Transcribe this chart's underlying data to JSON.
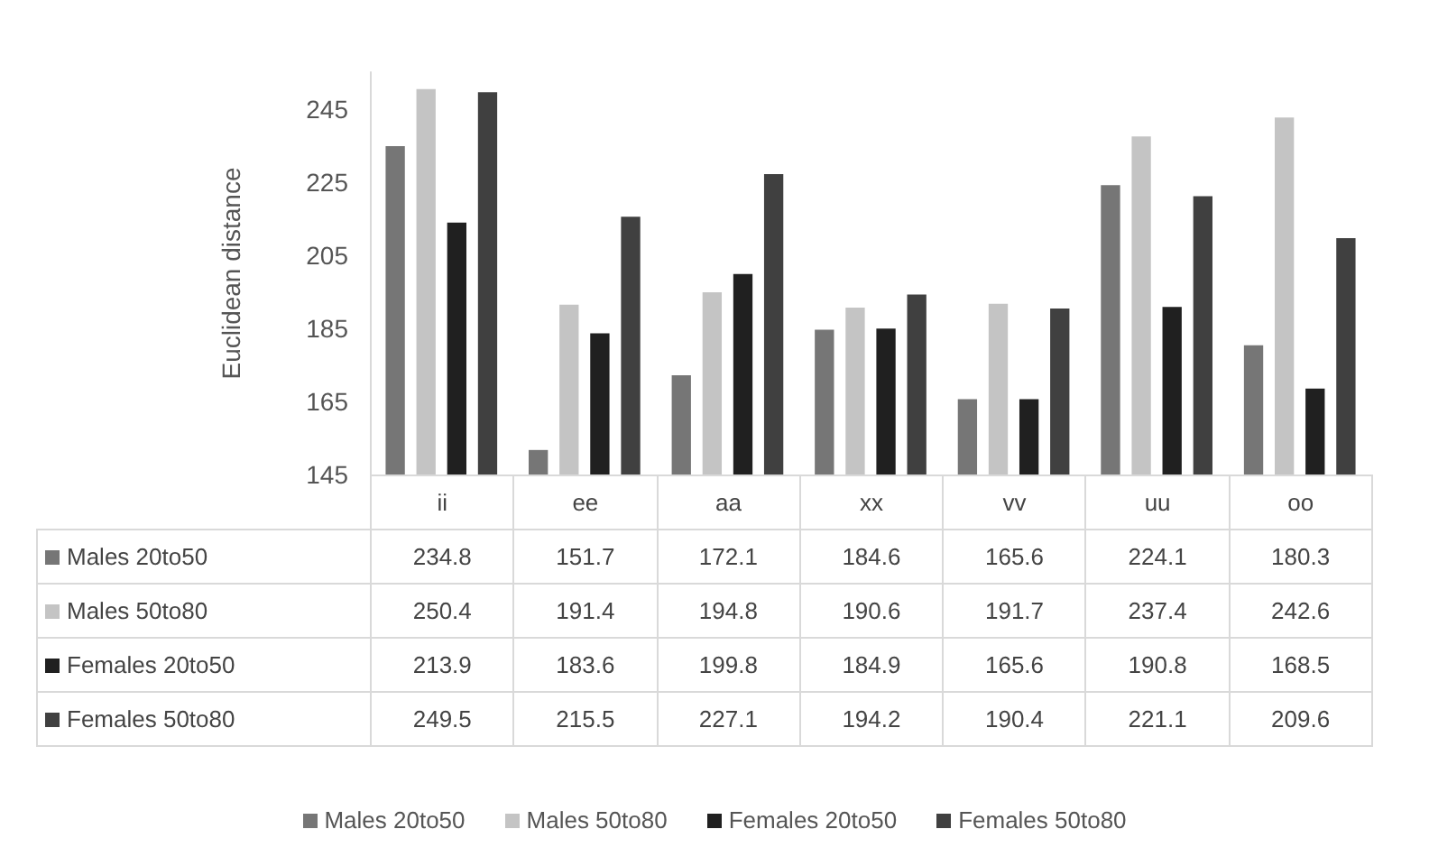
{
  "chart_data": {
    "type": "bar",
    "ylabel": "Euclidean distance",
    "categories": [
      "ii",
      "ee",
      "aa",
      "xx",
      "vv",
      "uu",
      "oo"
    ],
    "series": [
      {
        "name": "Males 20to50",
        "color": "#767676",
        "values": [
          234.8,
          151.7,
          172.1,
          184.6,
          165.6,
          224.1,
          180.3
        ]
      },
      {
        "name": "Males 50to80",
        "color": "#c4c4c4",
        "values": [
          250.4,
          191.4,
          194.8,
          190.6,
          191.7,
          237.4,
          242.6
        ]
      },
      {
        "name": "Females 20to50",
        "color": "#202020",
        "values": [
          213.9,
          183.6,
          199.8,
          184.9,
          165.6,
          190.8,
          168.5
        ]
      },
      {
        "name": "Females 50to80",
        "color": "#404040",
        "values": [
          249.5,
          215.5,
          227.1,
          194.2,
          190.4,
          221.1,
          209.6
        ]
      }
    ],
    "ylim": [
      145,
      255
    ],
    "yticks": [
      145,
      165,
      185,
      205,
      225,
      245
    ],
    "grid": false,
    "legend": "bottom",
    "data_labels": true
  }
}
